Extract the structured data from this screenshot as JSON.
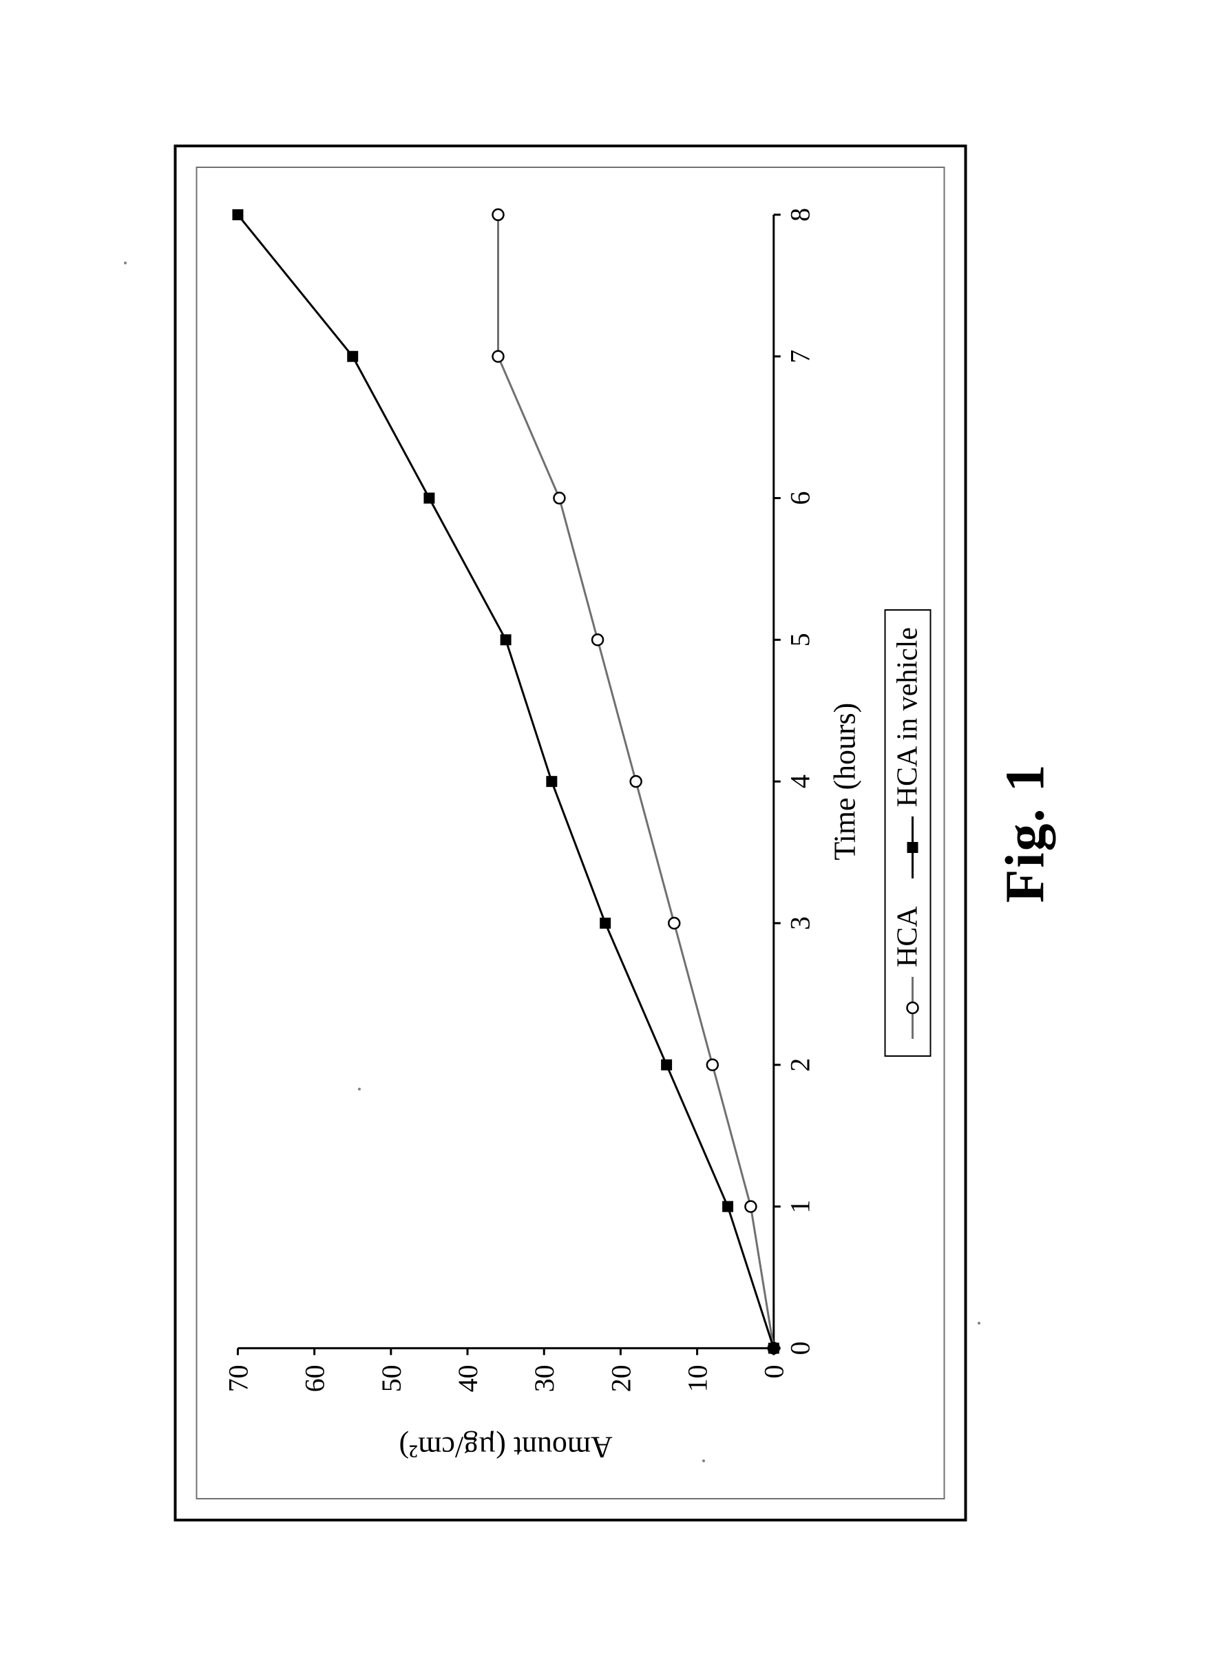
{
  "caption": "Fig. 1",
  "chart": {
    "type": "line",
    "xlabel": "Time (hours)",
    "ylabel": "Amount (µg/cm²)",
    "label_fontsize": 44,
    "tick_fontsize": 40,
    "xlim": [
      0,
      8
    ],
    "ylim": [
      0,
      70
    ],
    "xtick_step": 1,
    "ytick_step": 10,
    "background_color": "#ffffff",
    "axis_color": "#000000",
    "axis_width": 3,
    "tick_length": 10,
    "series": [
      {
        "name": "HCA",
        "marker": "circle-open",
        "marker_size": 16,
        "line_color": "#707070",
        "line_width": 3,
        "x": [
          0,
          1,
          2,
          3,
          4,
          5,
          6,
          7,
          8
        ],
        "y": [
          0,
          3,
          8,
          13,
          18,
          23,
          28,
          36,
          36
        ]
      },
      {
        "name": "HCA in vehicle",
        "marker": "square-filled",
        "marker_size": 16,
        "line_color": "#000000",
        "line_width": 3,
        "x": [
          0,
          1,
          2,
          3,
          4,
          5,
          6,
          7,
          8
        ],
        "y": [
          0,
          6,
          14,
          22,
          29,
          35,
          45,
          55,
          70
        ]
      }
    ],
    "font_family": "Times New Roman"
  },
  "legend": {
    "border_color": "#000000",
    "font_size": 42,
    "items": [
      {
        "label": "HCA",
        "series_index": 0
      },
      {
        "label": "HCA in vehicle",
        "series_index": 1
      }
    ]
  },
  "outer_border_color": "#000000",
  "inner_border_color": "#707070"
}
